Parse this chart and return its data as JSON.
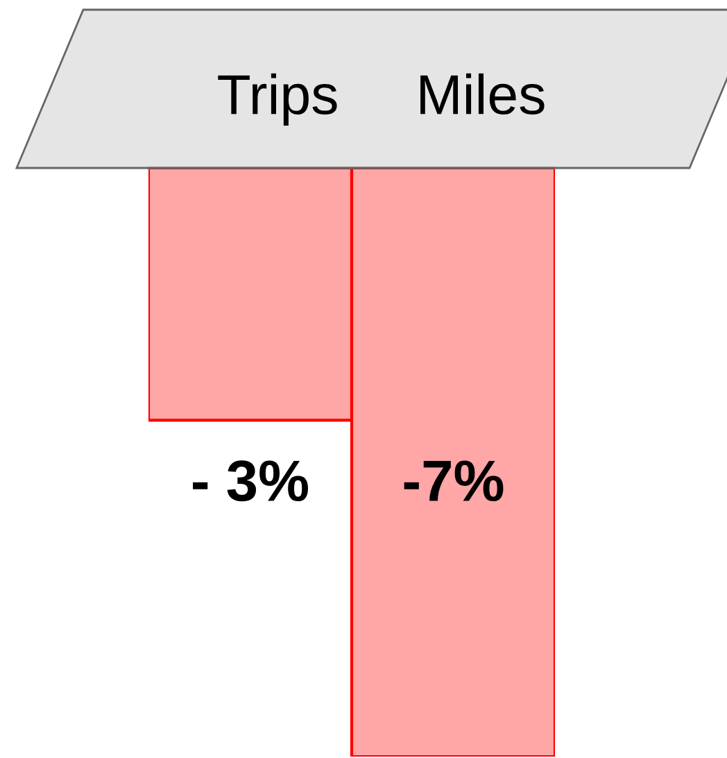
{
  "chart_data": {
    "type": "bar",
    "categories": [
      "Trips",
      "Miles"
    ],
    "values": [
      -3,
      -7
    ],
    "value_labels": [
      "- 3%",
      "-7%"
    ],
    "color": "#ffa6a6",
    "ylim": [
      -7,
      0
    ],
    "tick_labels": "x",
    "grid": false,
    "legend": false
  }
}
